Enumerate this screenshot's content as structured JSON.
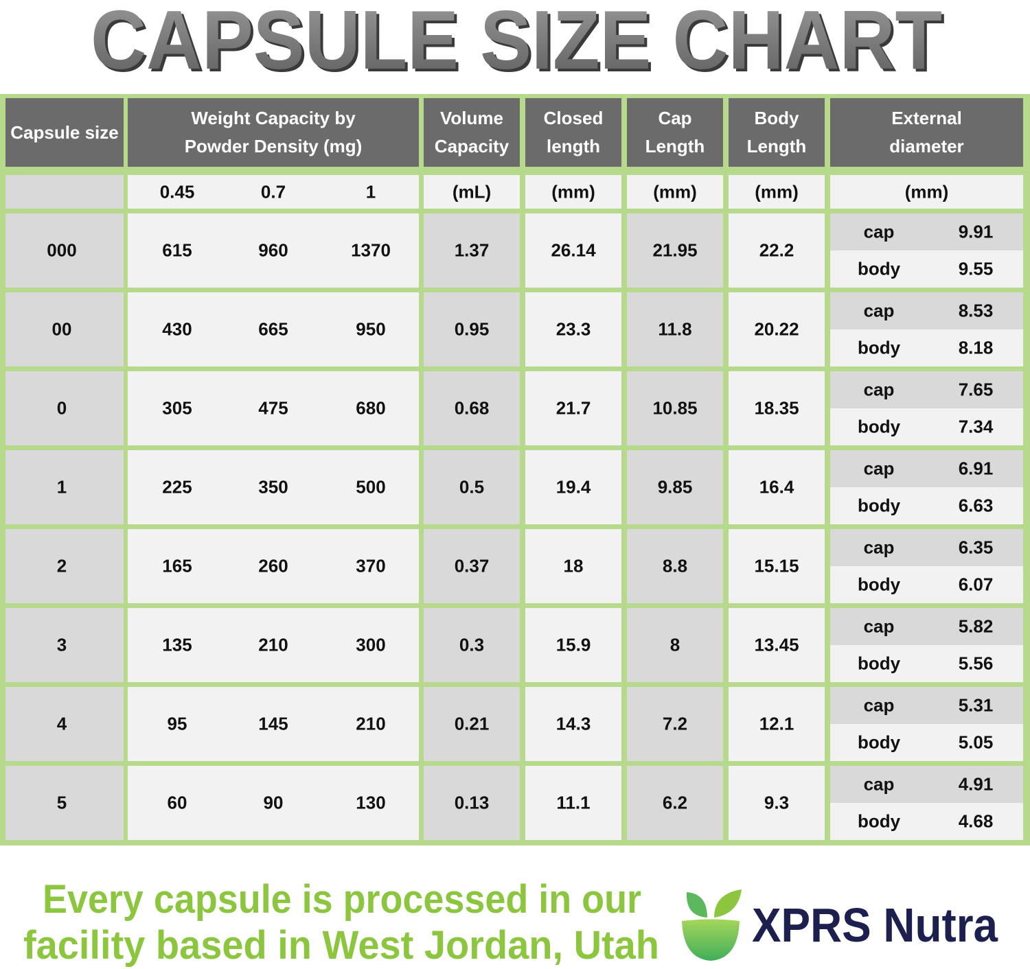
{
  "title": "CAPSULE SIZE CHART",
  "table": {
    "headers": [
      "Capsule size",
      "Weight Capacity by Powder Density (mg)",
      "Volume Capacity",
      "Closed length",
      "Cap Length",
      "Body Length",
      "External diameter"
    ],
    "densities": [
      0.45,
      0.7,
      1
    ],
    "units": [
      "(mL)",
      "(mm)",
      "(mm)",
      "(mm)",
      "(mm)"
    ],
    "diameter_labels": [
      "cap",
      "body"
    ],
    "rows": [
      {
        "size": "000",
        "weights": [
          615,
          960,
          1370
        ],
        "volume": 1.37,
        "closed": 26.14,
        "cap_length": 21.95,
        "body_length": 22.2,
        "diameter": [
          9.91,
          9.55
        ]
      },
      {
        "size": "00",
        "weights": [
          430,
          665,
          950
        ],
        "volume": 0.95,
        "closed": 23.3,
        "cap_length": 11.8,
        "body_length": 20.22,
        "diameter": [
          8.53,
          8.18
        ]
      },
      {
        "size": "0",
        "weights": [
          305,
          475,
          680
        ],
        "volume": 0.68,
        "closed": 21.7,
        "cap_length": 10.85,
        "body_length": 18.35,
        "diameter": [
          7.65,
          7.34
        ]
      },
      {
        "size": "1",
        "weights": [
          225,
          350,
          500
        ],
        "volume": 0.5,
        "closed": 19.4,
        "cap_length": 9.85,
        "body_length": 16.4,
        "diameter": [
          6.91,
          6.63
        ]
      },
      {
        "size": "2",
        "weights": [
          165,
          260,
          370
        ],
        "volume": 0.37,
        "closed": 18,
        "cap_length": 8.8,
        "body_length": 15.15,
        "diameter": [
          6.35,
          6.07
        ]
      },
      {
        "size": "3",
        "weights": [
          135,
          210,
          300
        ],
        "volume": 0.3,
        "closed": 15.9,
        "cap_length": 8,
        "body_length": 13.45,
        "diameter": [
          5.82,
          5.56
        ]
      },
      {
        "size": "4",
        "weights": [
          95,
          145,
          210
        ],
        "volume": 0.21,
        "closed": 14.3,
        "cap_length": 7.2,
        "body_length": 12.1,
        "diameter": [
          5.31,
          5.05
        ]
      },
      {
        "size": "5",
        "weights": [
          60,
          90,
          130
        ],
        "volume": 0.13,
        "closed": 11.1,
        "cap_length": 6.2,
        "body_length": 9.3,
        "diameter": [
          4.91,
          4.68
        ]
      }
    ]
  },
  "footer": {
    "lines": [
      "Every capsule is processed in our",
      "facility based in West Jordan, Utah"
    ],
    "brand": "XPRS Nutra"
  }
}
